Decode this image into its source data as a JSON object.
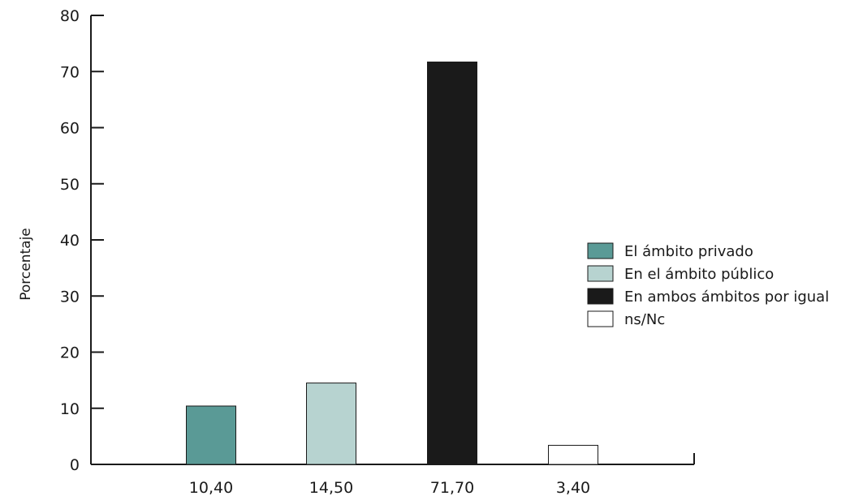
{
  "chart_data": {
    "type": "bar",
    "ylabel": "Porcentaje",
    "ylim": [
      0,
      80
    ],
    "yticks": [
      0,
      10,
      20,
      30,
      40,
      50,
      60,
      70,
      80
    ],
    "grid": false,
    "legend_position": "right",
    "categories": [
      "10,40",
      "14,50",
      "71,70",
      "3,40"
    ],
    "values": [
      10.4,
      14.5,
      71.7,
      3.4
    ],
    "series": [
      {
        "name": "El ámbito privado",
        "value": 10.4,
        "color": "#5a9a96"
      },
      {
        "name": "En el ámbito público",
        "value": 14.5,
        "color": "#b7d3d0"
      },
      {
        "name": "En ambos ámbitos por igual",
        "value": 71.7,
        "color": "#1a1a1a"
      },
      {
        "name": "ns/Nc",
        "value": 3.4,
        "color": "#ffffff"
      }
    ]
  }
}
